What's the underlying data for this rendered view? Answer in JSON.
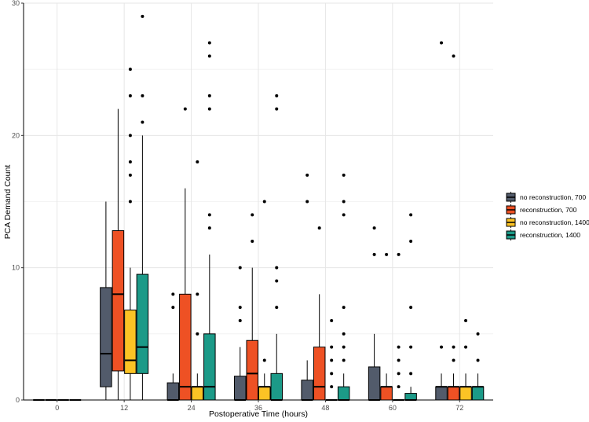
{
  "chart_data": {
    "type": "boxplot",
    "title": "",
    "xlabel": "Postoperative Time (hours)",
    "ylabel": "PCA Demand Count",
    "categories": [
      "0",
      "12",
      "24",
      "36",
      "48",
      "60",
      "72"
    ],
    "ylim": [
      0,
      30
    ],
    "yticks": [
      0,
      10,
      20,
      30
    ],
    "grid": true,
    "legend_position": "right",
    "series": [
      {
        "name": "no reconstruction, 700",
        "color": "#525b6b",
        "boxes": [
          {
            "min": 0,
            "q1": 0,
            "median": 0,
            "q3": 0,
            "max": 0,
            "outliers": []
          },
          {
            "min": 0,
            "q1": 1,
            "median": 3.5,
            "q3": 8.5,
            "max": 15,
            "outliers": []
          },
          {
            "min": 0,
            "q1": 0,
            "median": 0,
            "q3": 1.3,
            "max": 2,
            "outliers": [
              7,
              8
            ]
          },
          {
            "min": 0,
            "q1": 0,
            "median": 0,
            "q3": 1.8,
            "max": 4,
            "outliers": [
              6,
              7,
              10
            ]
          },
          {
            "min": 0,
            "q1": 0,
            "median": 0,
            "q3": 1.5,
            "max": 3,
            "outliers": [
              15,
              17
            ]
          },
          {
            "min": 0,
            "q1": 0,
            "median": 0,
            "q3": 2.5,
            "max": 5,
            "outliers": [
              11,
              13
            ]
          },
          {
            "min": 0,
            "q1": 0,
            "median": 1,
            "q3": 1,
            "max": 2,
            "outliers": [
              4,
              27
            ]
          }
        ]
      },
      {
        "name": "reconstruction, 700",
        "color": "#ee5124",
        "boxes": [
          {
            "min": 0,
            "q1": 0,
            "median": 0,
            "q3": 0,
            "max": 0,
            "outliers": []
          },
          {
            "min": 0,
            "q1": 2.2,
            "median": 8,
            "q3": 12.8,
            "max": 22,
            "outliers": []
          },
          {
            "min": 0,
            "q1": 0,
            "median": 1,
            "q3": 8,
            "max": 16,
            "outliers": [
              22
            ]
          },
          {
            "min": 0,
            "q1": 0,
            "median": 2,
            "q3": 4.5,
            "max": 10,
            "outliers": [
              12,
              14
            ]
          },
          {
            "min": 0,
            "q1": 0,
            "median": 1,
            "q3": 4,
            "max": 8,
            "outliers": [
              13
            ]
          },
          {
            "min": 0,
            "q1": 0,
            "median": 1,
            "q3": 1,
            "max": 2,
            "outliers": [
              11
            ]
          },
          {
            "min": 0,
            "q1": 0,
            "median": 1,
            "q3": 1,
            "max": 2,
            "outliers": [
              3,
              4,
              26
            ]
          }
        ]
      },
      {
        "name": "no reconstruction, 1400",
        "color": "#fbc325",
        "boxes": [
          {
            "min": 0,
            "q1": 0,
            "median": 0,
            "q3": 0,
            "max": 0,
            "outliers": []
          },
          {
            "min": 0,
            "q1": 2,
            "median": 3,
            "q3": 6.8,
            "max": 10,
            "outliers": [
              15,
              17,
              18,
              20,
              23,
              25
            ]
          },
          {
            "min": 0,
            "q1": 0,
            "median": 1,
            "q3": 1,
            "max": 2,
            "outliers": [
              5,
              8,
              18
            ]
          },
          {
            "min": 0,
            "q1": 0,
            "median": 1,
            "q3": 1,
            "max": 2,
            "outliers": [
              3,
              15
            ]
          },
          {
            "min": 0,
            "q1": 0,
            "median": 0,
            "q3": 0,
            "max": 0,
            "outliers": [
              1,
              2,
              3,
              4,
              6
            ]
          },
          {
            "min": 0,
            "q1": 0,
            "median": 0,
            "q3": 0,
            "max": 0,
            "outliers": [
              1,
              2,
              3,
              4,
              11
            ]
          },
          {
            "min": 0,
            "q1": 0,
            "median": 1,
            "q3": 1,
            "max": 2,
            "outliers": [
              4,
              6
            ]
          }
        ]
      },
      {
        "name": "reconstruction, 1400",
        "color": "#1c9a88",
        "boxes": [
          {
            "min": 0,
            "q1": 0,
            "median": 0,
            "q3": 0,
            "max": 0,
            "outliers": []
          },
          {
            "min": 0,
            "q1": 2,
            "median": 4,
            "q3": 9.5,
            "max": 20,
            "outliers": [
              21,
              23,
              29
            ]
          },
          {
            "min": 0,
            "q1": 0,
            "median": 1,
            "q3": 5,
            "max": 11,
            "outliers": [
              13,
              14,
              22,
              23,
              26,
              27
            ]
          },
          {
            "min": 0,
            "q1": 0,
            "median": 0,
            "q3": 2,
            "max": 5,
            "outliers": [
              7,
              9,
              10,
              22,
              23
            ]
          },
          {
            "min": 0,
            "q1": 0,
            "median": 0,
            "q3": 1,
            "max": 2,
            "outliers": [
              3,
              4,
              5,
              7,
              14,
              15,
              17
            ]
          },
          {
            "min": 0,
            "q1": 0,
            "median": 0,
            "q3": 0.5,
            "max": 1,
            "outliers": [
              2,
              4,
              7,
              12,
              14
            ]
          },
          {
            "min": 0,
            "q1": 0,
            "median": 1,
            "q3": 1,
            "max": 2,
            "outliers": [
              3,
              5
            ]
          }
        ]
      }
    ]
  }
}
